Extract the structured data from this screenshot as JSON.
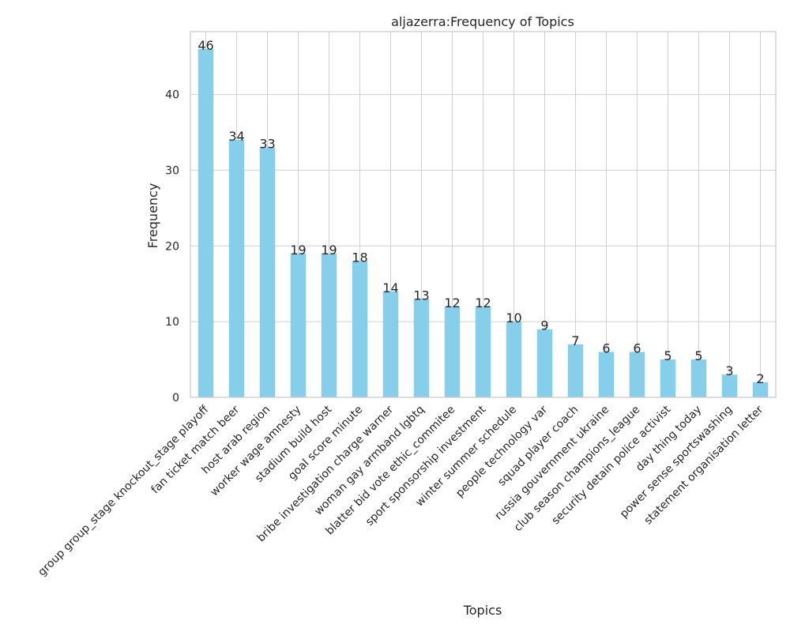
{
  "chart_data": {
    "type": "bar",
    "title": "aljazerra:Frequency of Topics",
    "xlabel": "Topics",
    "ylabel": "Frequency",
    "ylim": [
      0,
      48.3
    ],
    "yticks": [
      0,
      10,
      20,
      30,
      40
    ],
    "grid": true,
    "bar_color": "#87ceeb",
    "categories": [
      "group group_stage knockout_stage playoff",
      "fan ticket match beer",
      "host arab region",
      "worker wage amnesty",
      "stadium build host",
      "goal score minute",
      "bribe investigation charge warner",
      "woman gay armband lgbtq",
      "blatter bid vote ethic_commitee",
      "sport sponsorship investment",
      "winter summer schedule",
      "people technology var",
      "squad player coach",
      "russia gouvernment ukraine",
      "club season champions_league",
      "security detain police activist",
      "day thing today",
      "power sense sportswashing",
      "statement organisation letter"
    ],
    "values": [
      46,
      34,
      33,
      19,
      19,
      18,
      14,
      13,
      12,
      12,
      10,
      9,
      7,
      6,
      6,
      5,
      5,
      3,
      2
    ]
  }
}
